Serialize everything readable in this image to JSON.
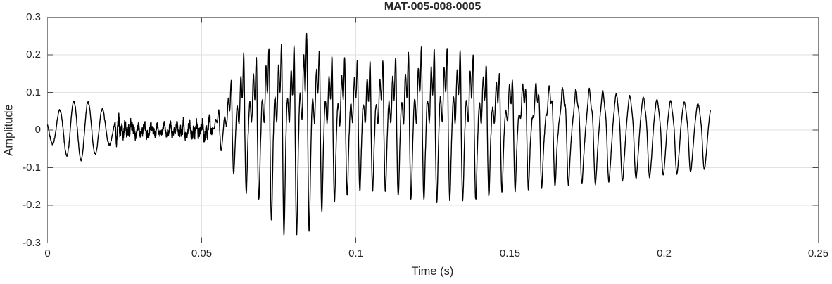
{
  "chart_data": {
    "type": "line",
    "title": "MAT-005-008-0005",
    "xlabel": "Time (s)",
    "ylabel": "Amplitude",
    "xlim": [
      0,
      0.25
    ],
    "ylim": [
      -0.3,
      0.3
    ],
    "grid": true,
    "legend": "none",
    "x_ticks": [
      0,
      0.05,
      0.1,
      0.15,
      0.2,
      0.25
    ],
    "x_tick_labels": [
      "0",
      "0.05",
      "0.1",
      "0.15",
      "0.2",
      "0.25"
    ],
    "y_ticks": [
      0.3,
      0.2,
      0.1,
      0,
      -0.1,
      -0.2,
      -0.3
    ],
    "y_tick_labels": [
      "0.3",
      "0.2",
      "0.1",
      "0",
      "-0.1",
      "-0.2",
      "-0.3"
    ],
    "colors": {
      "line": "#000000",
      "grid": "#e2e2e2",
      "axis": "#878787",
      "tick": "#4a4a4a",
      "text": "#262626"
    },
    "signal": {
      "description": "speech-like acoustic waveform: initial low ring, noise floor, voiced burst 0.054-0.215 s",
      "t_end": 0.215,
      "initial_ring": {
        "t_start": 0,
        "freq_hz": 215,
        "phase": 2.6,
        "amp_keypoints": [
          [
            0,
            0.025
          ],
          [
            0.004,
            0.055
          ],
          [
            0.008,
            0.075
          ],
          [
            0.011,
            0.08
          ],
          [
            0.014,
            0.07
          ],
          [
            0.017,
            0.06
          ],
          [
            0.02,
            0.04
          ],
          [
            0.022,
            0.025
          ]
        ]
      },
      "noise": {
        "t_start": 0.022,
        "amp_keypoints": [
          [
            0.022,
            0.028
          ],
          [
            0.028,
            0.022
          ],
          [
            0.035,
            0.016
          ],
          [
            0.042,
            0.018
          ],
          [
            0.048,
            0.024
          ],
          [
            0.0535,
            0.028
          ]
        ]
      },
      "voiced": {
        "t_start": 0.0535,
        "f0_keypoints": [
          [
            0.0535,
            246
          ],
          [
            0.09,
            244
          ],
          [
            0.13,
            238
          ],
          [
            0.17,
            230
          ],
          [
            0.215,
            224
          ]
        ],
        "envelope_keypoints": [
          [
            0.0535,
            0.02
          ],
          [
            0.0565,
            0.07
          ],
          [
            0.06,
            0.14
          ],
          [
            0.0635,
            0.2
          ],
          [
            0.067,
            0.19
          ],
          [
            0.071,
            0.215
          ],
          [
            0.075,
            0.23
          ],
          [
            0.079,
            0.21
          ],
          [
            0.083,
            0.26
          ],
          [
            0.087,
            0.215
          ],
          [
            0.091,
            0.19
          ],
          [
            0.096,
            0.19
          ],
          [
            0.102,
            0.18
          ],
          [
            0.108,
            0.18
          ],
          [
            0.115,
            0.2
          ],
          [
            0.122,
            0.215
          ],
          [
            0.127,
            0.22
          ],
          [
            0.133,
            0.215
          ],
          [
            0.138,
            0.2
          ],
          [
            0.143,
            0.175
          ],
          [
            0.148,
            0.155
          ],
          [
            0.155,
            0.145
          ],
          [
            0.163,
            0.135
          ],
          [
            0.172,
            0.12
          ],
          [
            0.18,
            0.11
          ],
          [
            0.19,
            0.095
          ],
          [
            0.2,
            0.082
          ],
          [
            0.208,
            0.076
          ],
          [
            0.215,
            0.07
          ]
        ],
        "asymmetry_keypoints": [
          [
            0.0535,
            0.8
          ],
          [
            0.06,
            0.8
          ],
          [
            0.065,
            0.82
          ],
          [
            0.07,
            1.0
          ],
          [
            0.074,
            1.15
          ],
          [
            0.078,
            1.3
          ],
          [
            0.082,
            1.15
          ],
          [
            0.088,
            1.08
          ],
          [
            0.095,
            0.95
          ],
          [
            0.102,
            0.88
          ],
          [
            0.112,
            0.9
          ],
          [
            0.12,
            0.88
          ],
          [
            0.13,
            0.85
          ],
          [
            0.14,
            0.95
          ],
          [
            0.148,
            1.05
          ],
          [
            0.16,
            1.1
          ],
          [
            0.17,
            1.2
          ],
          [
            0.18,
            1.3
          ],
          [
            0.19,
            1.4
          ],
          [
            0.2,
            1.5
          ],
          [
            0.215,
            1.5
          ]
        ],
        "richness_keypoints": [
          [
            0.0535,
            1
          ],
          [
            0.14,
            1
          ],
          [
            0.15,
            0.85
          ],
          [
            0.16,
            0.55
          ],
          [
            0.17,
            0.35
          ],
          [
            0.18,
            0.22
          ],
          [
            0.19,
            0.15
          ],
          [
            0.215,
            0.12
          ]
        ],
        "harmonics": {
          "h1": 0.62,
          "h2": 0.48,
          "h3": 0.3,
          "h4": 0.14,
          "p2": 2.2,
          "p3": 4.0,
          "p4": 0.8
        }
      }
    }
  }
}
